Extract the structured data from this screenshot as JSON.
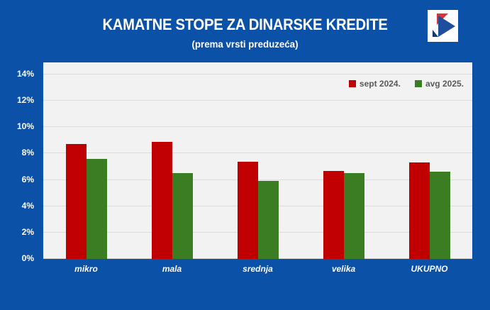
{
  "header": {
    "title": "KAMATNE STOPE ZA DINARSKE KREDITE",
    "subtitle": "(prema vrsti preduzeća)"
  },
  "colors": {
    "background": "#0B51A8",
    "plot_background": "#F2F2F2",
    "gridline": "#DCDCDC",
    "axis_text": "#FFFFFF",
    "legend_text": "#595959",
    "series_sept": "#C00000",
    "series_avg": "#3A7D23",
    "logo_red": "#D93438",
    "logo_blue": "#1D4F9E",
    "logo_navy": "#123A78"
  },
  "logo": {
    "name": "chevron-arrow-logo"
  },
  "chart_data": {
    "type": "bar",
    "title": "KAMATNE STOPE ZA DINARSKE KREDITE",
    "subtitle": "(prema vrsti preduzeća)",
    "categories": [
      "mikro",
      "mala",
      "srednja",
      "velika",
      "UKUPNO"
    ],
    "series": [
      {
        "name": "sept 2024.",
        "color": "#C00000",
        "values": [
          8.7,
          8.9,
          7.4,
          6.7,
          7.3
        ]
      },
      {
        "name": "avg 2025.",
        "color": "#3A7D23",
        "values": [
          7.6,
          6.5,
          5.9,
          6.5,
          6.6
        ]
      }
    ],
    "xlabel": "",
    "ylabel": "",
    "ylim": [
      0,
      14.92
    ],
    "ytick_step": 2,
    "yticks": [
      "0%",
      "2%",
      "4%",
      "6%",
      "8%",
      "10%",
      "12%",
      "14%"
    ],
    "grid": true,
    "legend_position": "top-right"
  }
}
